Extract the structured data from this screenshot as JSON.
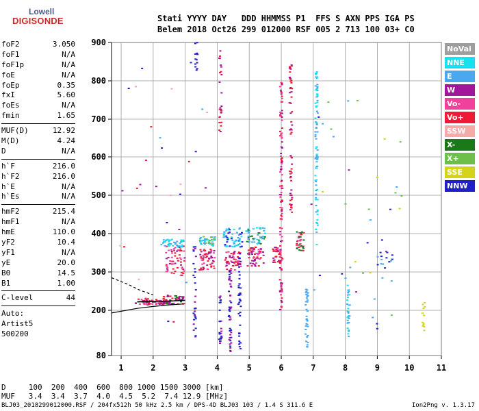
{
  "logo": {
    "line1": "Lowell",
    "line2": "DIGISONDE"
  },
  "header": {
    "line1": "Stati YYYY DAY   DDD HHMMSS P1  FFS S AXN PPS IGA PS",
    "line2": "Belem 2018 Oct26 299 012000 RSF 005 2 713 100 03+ C0"
  },
  "params": [
    {
      "key": "foF2",
      "value": "3.050"
    },
    {
      "key": "foF1",
      "value": "N/A"
    },
    {
      "key": "foF1p",
      "value": "N/A"
    },
    {
      "key": "foE",
      "value": "N/A"
    },
    {
      "key": "foEp",
      "value": "0.35"
    },
    {
      "key": "fxI",
      "value": "5.60"
    },
    {
      "key": "foEs",
      "value": "N/A"
    },
    {
      "key": "fmin",
      "value": "1.65"
    },
    {
      "key": "MUF(D)",
      "value": "12.92"
    },
    {
      "key": "M(D)",
      "value": "4.24"
    },
    {
      "key": "D",
      "value": "N/A"
    },
    {
      "key": "h`F",
      "value": "216.0"
    },
    {
      "key": "h`F2",
      "value": "216.0"
    },
    {
      "key": "h`E",
      "value": "N/A"
    },
    {
      "key": "h`Es",
      "value": "N/A"
    },
    {
      "key": "hmF2",
      "value": "215.4"
    },
    {
      "key": "hmF1",
      "value": "N/A"
    },
    {
      "key": "hmE",
      "value": "110.0"
    },
    {
      "key": "yF2",
      "value": "10.4"
    },
    {
      "key": "yF1",
      "value": "N/A"
    },
    {
      "key": "yE",
      "value": "20.0"
    },
    {
      "key": "B0",
      "value": "14.5"
    },
    {
      "key": "B1",
      "value": "1.00"
    },
    {
      "key": "C-level",
      "value": "44"
    }
  ],
  "auto": {
    "line1": "Auto:",
    "line2": "Artist5",
    "line3": "500200"
  },
  "legend": [
    {
      "label": "NoVal",
      "color": "#9e9e9e"
    },
    {
      "label": "NNE",
      "color": "#17e0ef"
    },
    {
      "label": "E",
      "color": "#4aa8ee"
    },
    {
      "label": "W",
      "color": "#a0179a"
    },
    {
      "label": "Vo-",
      "color": "#f0419c"
    },
    {
      "label": "Vo+",
      "color": "#ee1b34"
    },
    {
      "label": "SSW",
      "color": "#f5a9a9"
    },
    {
      "label": "X-",
      "color": "#1a7a1a"
    },
    {
      "label": "X+",
      "color": "#6cc04a"
    },
    {
      "label": "SSE",
      "color": "#d4d41a"
    },
    {
      "label": "NNW",
      "color": "#1f1fc8"
    }
  ],
  "chart_data": {
    "type": "scatter",
    "xlabel": "",
    "ylabel": "",
    "xlim": [
      0.7,
      11
    ],
    "ylim": [
      80,
      900
    ],
    "xticks": [
      "1",
      "2",
      "3",
      "4",
      "5",
      "6",
      "7",
      "8",
      "9",
      "10",
      "11"
    ],
    "yticks": [
      "80",
      "200",
      "300",
      "400",
      "500",
      "600",
      "700",
      "800",
      "900"
    ],
    "grid": true,
    "traces": [
      {
        "name": "F2 O-trace",
        "x": [
          1.5,
          2.0,
          2.5,
          3.0
        ],
        "y": [
          222,
          223,
          224,
          226
        ]
      },
      {
        "name": "profile lower",
        "x": [
          0.7,
          1.5,
          2.0,
          2.5,
          3.0
        ],
        "y": [
          193,
          205,
          210,
          214,
          217
        ]
      },
      {
        "name": "profile upper dashed",
        "x": [
          0.7,
          1.2,
          1.6,
          2.0
        ],
        "y": [
          285,
          268,
          252,
          240
        ]
      }
    ],
    "clusters": [
      {
        "x": 2.0,
        "y": 222,
        "dx": 0.55,
        "dy": 8,
        "n": 70,
        "colors": [
          "#ee1b34",
          "#a0179a",
          "#f0419c"
        ]
      },
      {
        "x": 2.6,
        "y": 228,
        "dx": 0.35,
        "dy": 12,
        "n": 50,
        "colors": [
          "#1a7a1a",
          "#ee1b34",
          "#a0179a"
        ]
      },
      {
        "x": 2.7,
        "y": 330,
        "dx": 0.3,
        "dy": 40,
        "n": 60,
        "colors": [
          "#f0419c",
          "#ee1b34",
          "#a0179a"
        ]
      },
      {
        "x": 2.6,
        "y": 375,
        "dx": 0.35,
        "dy": 10,
        "n": 40,
        "colors": [
          "#4aa8ee",
          "#17e0ef"
        ]
      },
      {
        "x": 3.7,
        "y": 335,
        "dx": 0.25,
        "dy": 30,
        "n": 55,
        "colors": [
          "#ee1b34",
          "#f0419c",
          "#a0179a"
        ]
      },
      {
        "x": 3.7,
        "y": 380,
        "dx": 0.25,
        "dy": 12,
        "n": 40,
        "colors": [
          "#4aa8ee",
          "#17e0ef",
          "#6cc04a"
        ]
      },
      {
        "x": 4.5,
        "y": 330,
        "dx": 0.25,
        "dy": 25,
        "n": 60,
        "colors": [
          "#ee1b34",
          "#f0419c",
          "#a0179a"
        ]
      },
      {
        "x": 4.5,
        "y": 390,
        "dx": 0.3,
        "dy": 25,
        "n": 60,
        "colors": [
          "#4aa8ee",
          "#1f1fc8",
          "#17e0ef"
        ]
      },
      {
        "x": 5.2,
        "y": 340,
        "dx": 0.25,
        "dy": 25,
        "n": 60,
        "colors": [
          "#ee1b34",
          "#f0419c",
          "#a0179a"
        ]
      },
      {
        "x": 5.2,
        "y": 395,
        "dx": 0.3,
        "dy": 22,
        "n": 50,
        "colors": [
          "#4aa8ee",
          "#17e0ef",
          "#1a7a1a"
        ]
      },
      {
        "x": 5.85,
        "y": 345,
        "dx": 0.12,
        "dy": 20,
        "n": 30,
        "colors": [
          "#ee1b34",
          "#a0179a"
        ]
      },
      {
        "x": 6.6,
        "y": 380,
        "dx": 0.12,
        "dy": 25,
        "n": 35,
        "colors": [
          "#ee1b34",
          "#f0419c",
          "#1a7a1a"
        ]
      },
      {
        "x": 6.0,
        "y": 500,
        "dx": 0.04,
        "dy": 300,
        "n": 120,
        "colors": [
          "#a0179a",
          "#ee1b34",
          "#f0419c"
        ]
      },
      {
        "x": 6.3,
        "y": 650,
        "dx": 0.04,
        "dy": 200,
        "n": 60,
        "colors": [
          "#a0179a",
          "#ee1b34"
        ]
      },
      {
        "x": 7.1,
        "y": 600,
        "dx": 0.04,
        "dy": 230,
        "n": 80,
        "colors": [
          "#4aa8ee",
          "#17e0ef"
        ]
      },
      {
        "x": 6.8,
        "y": 180,
        "dx": 0.04,
        "dy": 80,
        "n": 35,
        "colors": [
          "#4aa8ee"
        ]
      },
      {
        "x": 4.4,
        "y": 200,
        "dx": 0.04,
        "dy": 110,
        "n": 50,
        "colors": [
          "#1f1fc8",
          "#a0179a"
        ]
      },
      {
        "x": 4.7,
        "y": 220,
        "dx": 0.04,
        "dy": 130,
        "n": 40,
        "colors": [
          "#1f1fc8"
        ]
      },
      {
        "x": 3.3,
        "y": 250,
        "dx": 0.04,
        "dy": 130,
        "n": 30,
        "colors": [
          "#1f1fc8",
          "#a0179a"
        ]
      },
      {
        "x": 4.1,
        "y": 170,
        "dx": 0.04,
        "dy": 70,
        "n": 25,
        "colors": [
          "#a0179a",
          "#1f1fc8"
        ]
      },
      {
        "x": 8.1,
        "y": 200,
        "dx": 0.04,
        "dy": 70,
        "n": 30,
        "colors": [
          "#4aa8ee",
          "#17e0ef"
        ]
      },
      {
        "x": 10.45,
        "y": 180,
        "dx": 0.04,
        "dy": 40,
        "n": 12,
        "colors": [
          "#d4d41a"
        ]
      },
      {
        "x": 9.3,
        "y": 330,
        "dx": 0.2,
        "dy": 60,
        "n": 15,
        "colors": [
          "#4aa8ee",
          "#1f1fc8"
        ]
      },
      {
        "x": 4.1,
        "y": 780,
        "dx": 0.04,
        "dy": 120,
        "n": 25,
        "colors": [
          "#ee1b34",
          "#a0179a"
        ]
      },
      {
        "x": 3.35,
        "y": 850,
        "dx": 0.04,
        "dy": 50,
        "n": 12,
        "colors": [
          "#1f1fc8"
        ]
      },
      {
        "x": 8.3,
        "y": 450,
        "dx": 1.5,
        "dy": 300,
        "n": 40,
        "colors": [
          "#4aa8ee",
          "#1f1fc8",
          "#a0179a",
          "#d4d41a",
          "#6cc04a"
        ]
      },
      {
        "x": 2.3,
        "y": 500,
        "dx": 1.4,
        "dy": 350,
        "n": 30,
        "colors": [
          "#4aa8ee",
          "#1f1fc8",
          "#a0179a",
          "#f5a9a9",
          "#ee1b34"
        ]
      }
    ]
  },
  "dtable": {
    "d_line": "D     100  200  400  600  800 1000 1500 3000 [km]",
    "muf_line": "MUF   3.4  3.4  3.7  4.0  4.5  5.2  7.4 12.9 [MHz]"
  },
  "footer": {
    "left": "BLJ03_2018299012000.RSF / 204fx512h 50 kHz 2.5 km / DPS-4D BLJ03 103 / 1.4 S 311.6 E",
    "right": "Ion2Png v. 1.3.17"
  }
}
